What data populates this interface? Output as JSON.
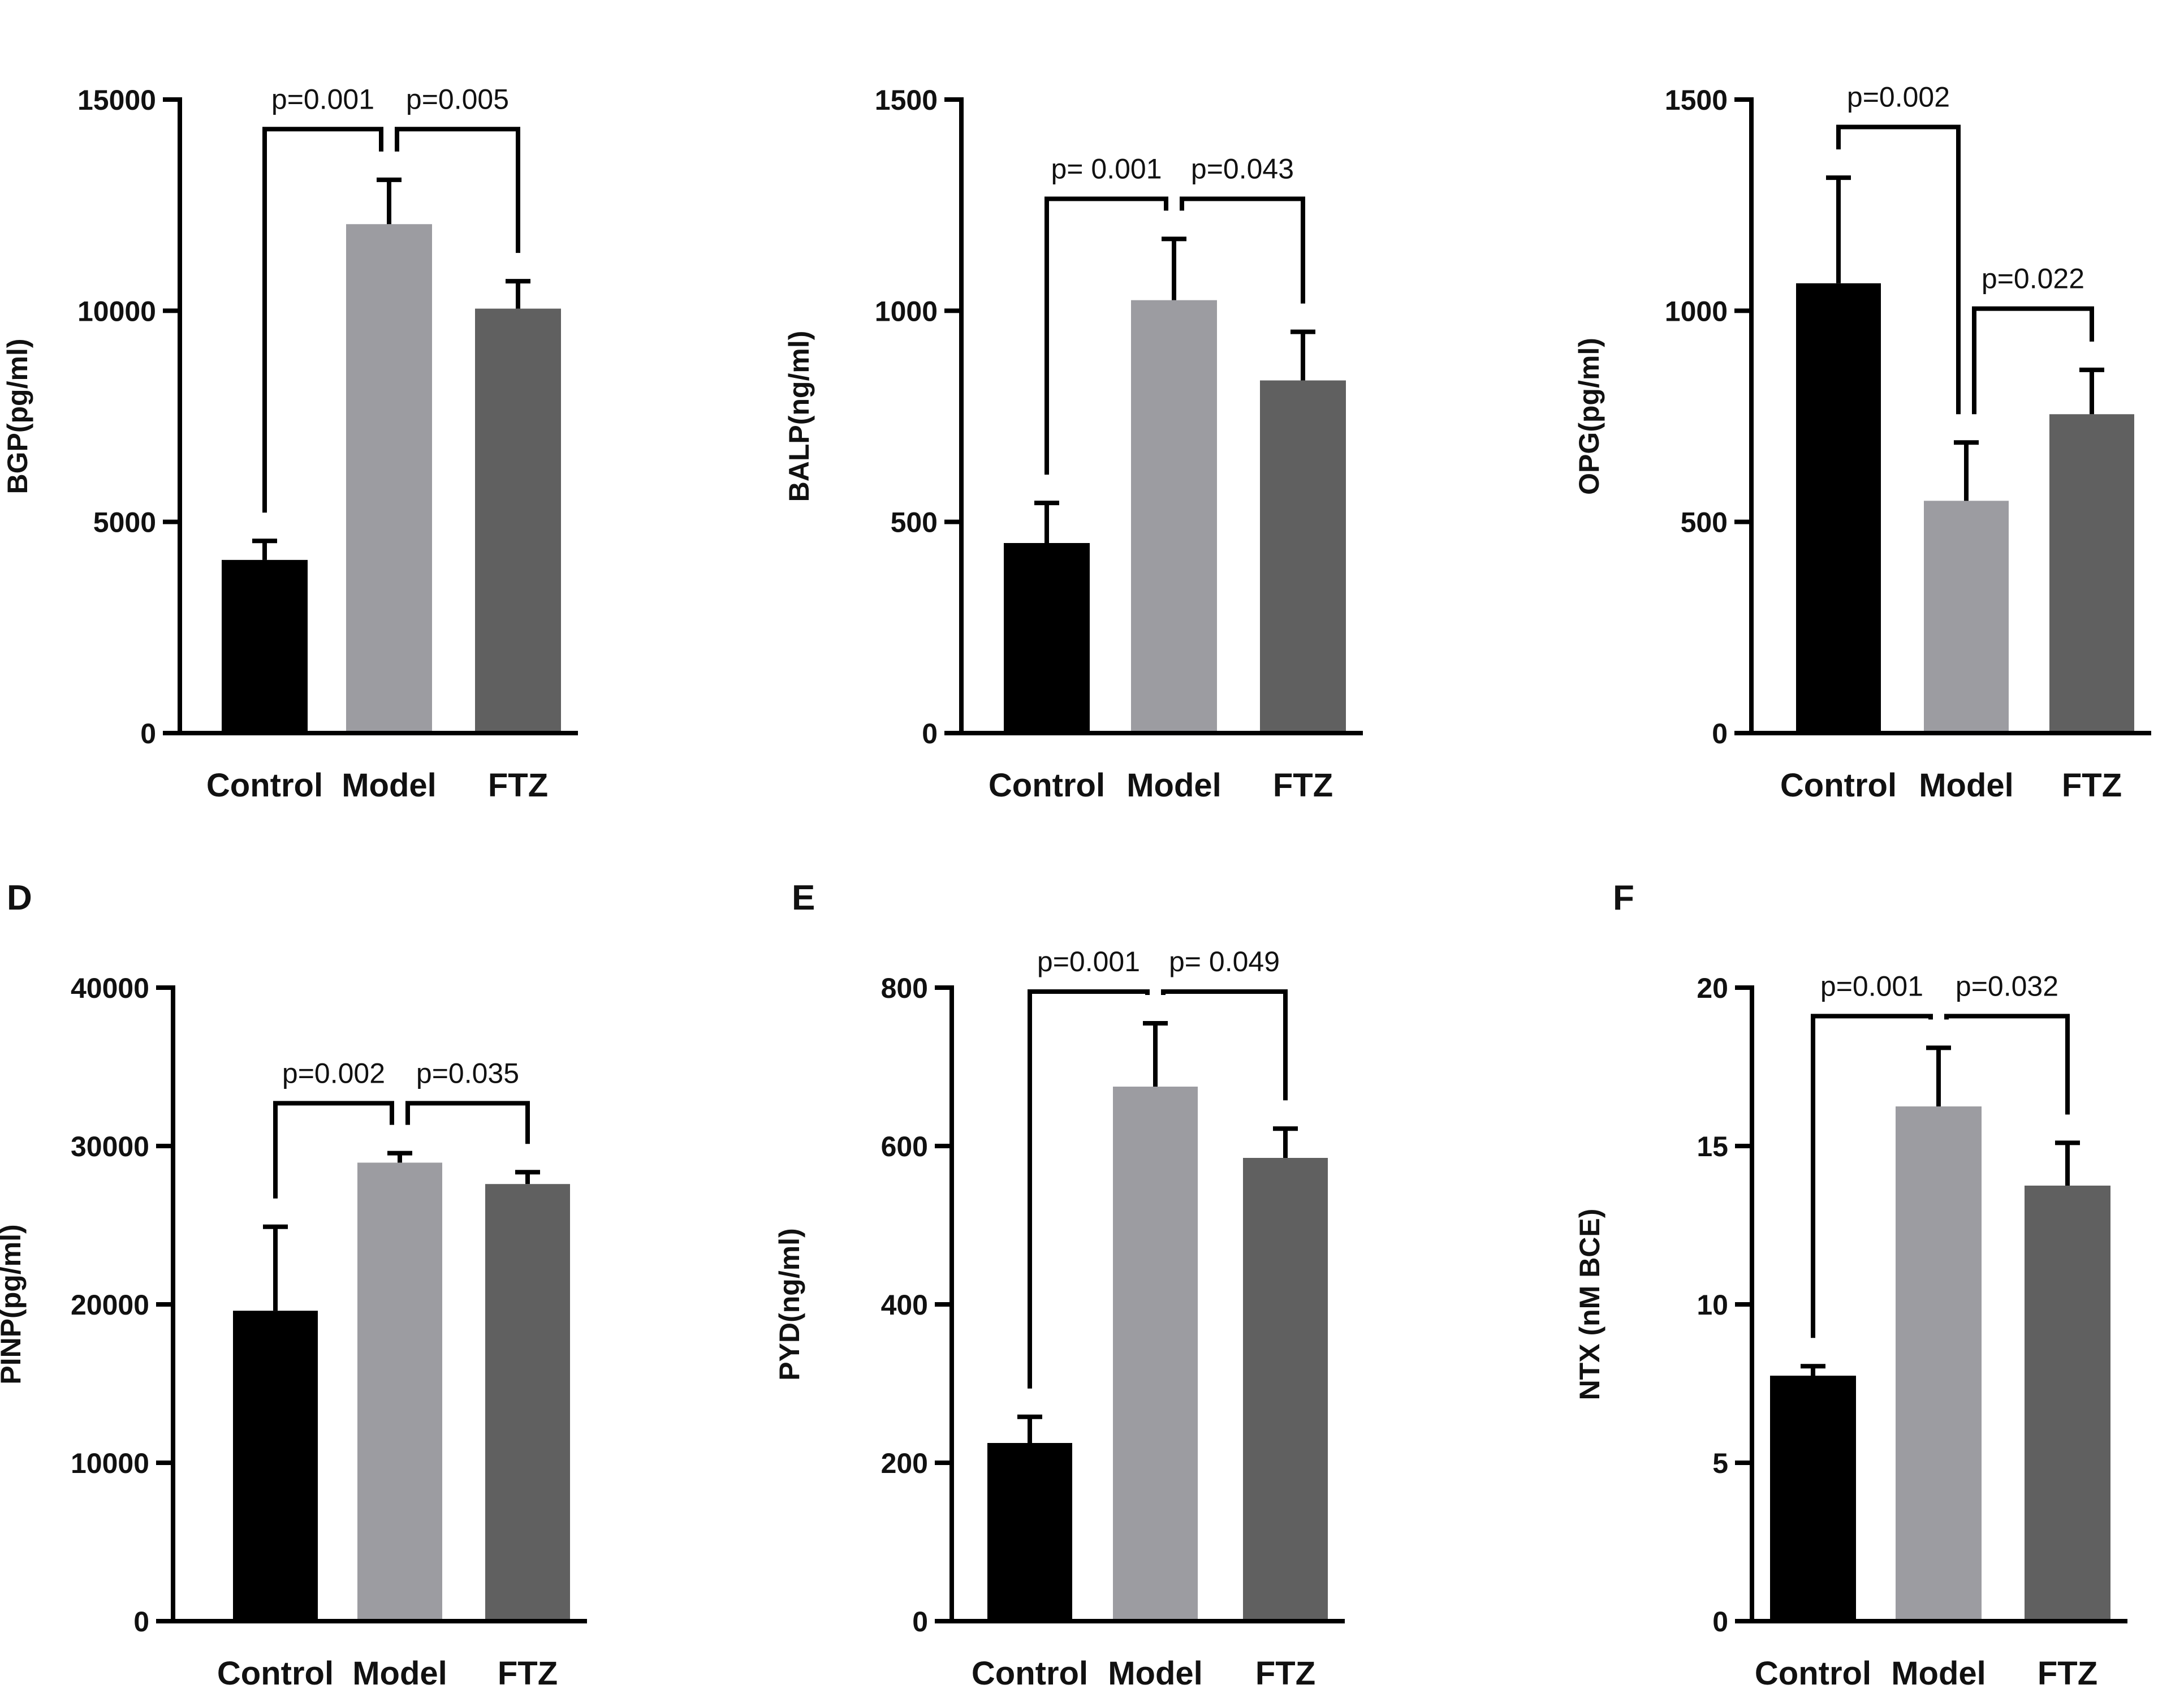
{
  "colors": {
    "axis": "#000000",
    "bars": [
      "#000000",
      "#9c9ca1",
      "#606060"
    ]
  },
  "chart_data": [
    {
      "panel_label": "",
      "type": "bar",
      "categories": [
        "Control",
        "Model",
        "FTZ"
      ],
      "values": [
        4100,
        12050,
        10050
      ],
      "errors": [
        450,
        1050,
        650
      ],
      "ylabel": "BGP(pg/ml)",
      "ylim": [
        0,
        15000
      ],
      "yticks": [
        0,
        5000,
        10000,
        15000
      ],
      "ytick_labels": [
        "0",
        "5000",
        "10000",
        "15000"
      ],
      "comparisons": [
        {
          "from": 0,
          "to": 1,
          "label": "p=0.001",
          "y": 14300
        },
        {
          "from": 1,
          "to": 2,
          "label": "p=0.005",
          "y": 14300
        }
      ]
    },
    {
      "panel_label": "",
      "type": "bar",
      "categories": [
        "Control",
        "Model",
        "FTZ"
      ],
      "values": [
        450,
        1025,
        835
      ],
      "errors": [
        95,
        145,
        115
      ],
      "ylabel": "BALP(ng/ml)",
      "ylim": [
        0,
        1500
      ],
      "yticks": [
        0,
        500,
        1000,
        1500
      ],
      "ytick_labels": [
        "0",
        "500",
        "1000",
        "1500"
      ],
      "comparisons": [
        {
          "from": 0,
          "to": 1,
          "label": "p= 0.001",
          "y": 1265
        },
        {
          "from": 1,
          "to": 2,
          "label": "p=0.043",
          "y": 1265
        }
      ]
    },
    {
      "panel_label": "",
      "type": "bar",
      "categories": [
        "Control",
        "Model",
        "FTZ"
      ],
      "values": [
        1065,
        550,
        755
      ],
      "errors": [
        250,
        138,
        105
      ],
      "ylabel": "OPG(pg/ml)",
      "ylim": [
        0,
        1500
      ],
      "yticks": [
        0,
        500,
        1000,
        1500
      ],
      "ytick_labels": [
        "0",
        "500",
        "1000",
        "1500"
      ],
      "comparisons": [
        {
          "from": 0,
          "to": 1,
          "label": "p=0.002",
          "y": 1435
        },
        {
          "from": 1,
          "to": 2,
          "label": "p=0.022",
          "y": 1005
        }
      ]
    },
    {
      "panel_label": "D",
      "type": "bar",
      "categories": [
        "Control",
        "Model",
        "FTZ"
      ],
      "values": [
        19600,
        28950,
        27600
      ],
      "errors": [
        5300,
        600,
        750
      ],
      "ylabel": "PINP(pg/ml)",
      "ylim": [
        0,
        40000
      ],
      "yticks": [
        0,
        10000,
        20000,
        30000,
        40000
      ],
      "ytick_labels": [
        "0",
        "10000",
        "20000",
        "30000",
        "40000"
      ],
      "comparisons": [
        {
          "from": 0,
          "to": 1,
          "label": "p=0.002",
          "y": 32700
        },
        {
          "from": 1,
          "to": 2,
          "label": "p=0.035",
          "y": 32700
        }
      ]
    },
    {
      "panel_label": "E",
      "type": "bar",
      "categories": [
        "Control",
        "Model",
        "FTZ"
      ],
      "values": [
        225,
        675,
        585
      ],
      "errors": [
        33,
        80,
        37
      ],
      "ylabel": "PYD(ng/ml)",
      "ylim": [
        0,
        800
      ],
      "yticks": [
        0,
        200,
        400,
        600,
        800
      ],
      "ytick_labels": [
        "0",
        "200",
        "400",
        "600",
        "800"
      ],
      "comparisons": [
        {
          "from": 0,
          "to": 1,
          "label": "p=0.001",
          "y": 795
        },
        {
          "from": 1,
          "to": 2,
          "label": "p= 0.049",
          "y": 795
        }
      ]
    },
    {
      "panel_label": "F",
      "type": "bar",
      "categories": [
        "Control",
        "Model",
        "FTZ"
      ],
      "values": [
        7.75,
        16.25,
        13.75
      ],
      "errors": [
        0.3,
        1.85,
        1.35
      ],
      "ylabel": "NTX (nM BCE)",
      "ylim": [
        0,
        20
      ],
      "yticks": [
        0,
        5,
        10,
        15,
        20
      ],
      "ytick_labels": [
        "0",
        "5",
        "10",
        "15",
        "20"
      ],
      "comparisons": [
        {
          "from": 0,
          "to": 1,
          "label": "p=0.001",
          "y": 19.1
        },
        {
          "from": 1,
          "to": 2,
          "label": "p=0.032",
          "y": 19.1
        }
      ]
    }
  ]
}
